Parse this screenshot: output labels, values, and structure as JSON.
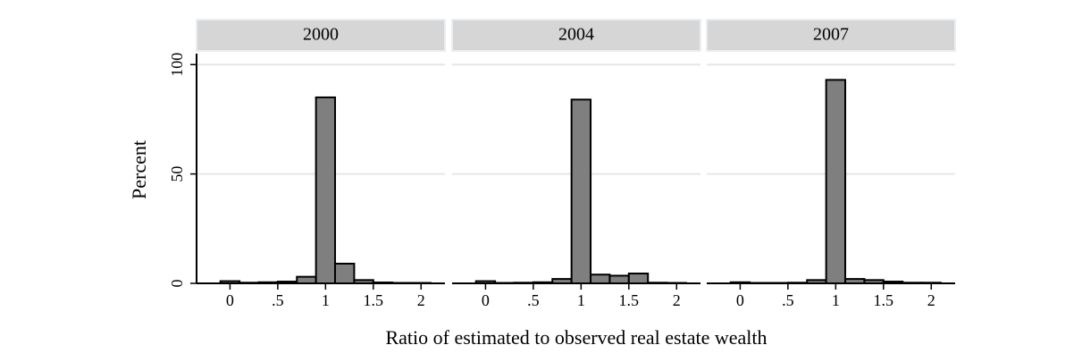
{
  "chart_data": [
    {
      "type": "histogram",
      "title": "2000",
      "bins": [
        -0.1,
        0.1,
        0.3,
        0.5,
        0.7,
        0.9,
        1.1,
        1.3,
        1.5,
        1.7,
        1.9,
        2.1
      ],
      "values": [
        1,
        0.3,
        0.5,
        0.8,
        3,
        85,
        9,
        1.5,
        0.4,
        0.2,
        0.2
      ],
      "color": "#7f7f7f",
      "xlim": [
        -0.35,
        2.25
      ],
      "xticks": [
        0,
        {
          "value": 0.5,
          "label": ".5"
        },
        1,
        1.5,
        2
      ],
      "ylim": [
        0,
        105
      ],
      "yticks": [
        0,
        50,
        100
      ],
      "grid": true
    },
    {
      "type": "histogram",
      "title": "2004",
      "bins": [
        -0.1,
        0.1,
        0.3,
        0.5,
        0.7,
        0.9,
        1.1,
        1.3,
        1.5,
        1.7,
        1.9,
        2.1
      ],
      "values": [
        1,
        0.2,
        0.3,
        0.5,
        2,
        84,
        4,
        3.5,
        4.5,
        0.3,
        0.2
      ],
      "color": "#7f7f7f",
      "xlim": [
        -0.35,
        2.25
      ],
      "xticks": [
        0,
        {
          "value": 0.5,
          "label": ".5"
        },
        1,
        1.5,
        2
      ],
      "ylim": [
        0,
        105
      ],
      "yticks": [
        0,
        50,
        100
      ],
      "grid": true
    },
    {
      "type": "histogram",
      "title": "2007",
      "bins": [
        -0.1,
        0.1,
        0.3,
        0.5,
        0.7,
        0.9,
        1.1,
        1.3,
        1.5,
        1.7,
        1.9,
        2.1
      ],
      "values": [
        0.5,
        0.2,
        0.2,
        0.3,
        1.5,
        93,
        2,
        1.5,
        0.8,
        0.3,
        0.3
      ],
      "color": "#7f7f7f",
      "xlim": [
        -0.35,
        2.25
      ],
      "xticks": [
        0,
        {
          "value": 0.5,
          "label": ".5"
        },
        1,
        1.5,
        2
      ],
      "ylim": [
        0,
        105
      ],
      "yticks": [
        0,
        50,
        100
      ],
      "grid": true
    }
  ],
  "xlabel": "Ratio of estimated to observed real estate wealth",
  "ylabel": "Percent"
}
